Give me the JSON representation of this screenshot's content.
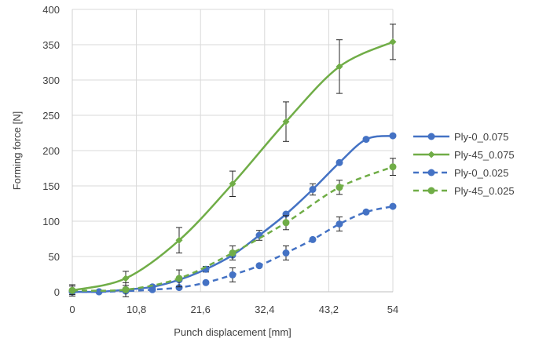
{
  "chart_data": {
    "type": "line",
    "xlabel": "Punch displacement [mm]",
    "ylabel": "Forming force [N]",
    "xlim": [
      0,
      54
    ],
    "ylim": [
      0,
      400
    ],
    "x_ticks": [
      "0",
      "10,8",
      "21,6",
      "32,4",
      "43,2",
      "54"
    ],
    "y_ticks": [
      "0",
      "50",
      "100",
      "150",
      "200",
      "250",
      "300",
      "350",
      "400"
    ],
    "grid": true,
    "legend_position": "right",
    "series": [
      {
        "name": "Ply-0_0.075",
        "color": "#4472C4",
        "dash": "solid",
        "marker": "circle",
        "points": [
          {
            "x": 0,
            "y": 0,
            "err": 0
          },
          {
            "x": 4.5,
            "y": 0,
            "err": 0
          },
          {
            "x": 9,
            "y": 3,
            "err": 0
          },
          {
            "x": 13.5,
            "y": 7,
            "err": 0
          },
          {
            "x": 18,
            "y": 17,
            "err": 0
          },
          {
            "x": 22.5,
            "y": 32,
            "err": 4
          },
          {
            "x": 27,
            "y": 52,
            "err": 0
          },
          {
            "x": 31.5,
            "y": 80,
            "err": 7
          },
          {
            "x": 36,
            "y": 110,
            "err": 0
          },
          {
            "x": 40.5,
            "y": 145,
            "err": 8
          },
          {
            "x": 45,
            "y": 183,
            "err": 0
          },
          {
            "x": 49.5,
            "y": 216,
            "err": 0
          },
          {
            "x": 54,
            "y": 221,
            "err": 0
          }
        ]
      },
      {
        "name": "Ply-45_0.075",
        "color": "#70AD47",
        "dash": "solid",
        "marker": "diamond",
        "points": [
          {
            "x": 0,
            "y": 2,
            "err": 8
          },
          {
            "x": 9,
            "y": 19,
            "err": 10
          },
          {
            "x": 18,
            "y": 73,
            "err": 18
          },
          {
            "x": 27,
            "y": 153,
            "err": 18
          },
          {
            "x": 36,
            "y": 241,
            "err": 28
          },
          {
            "x": 45,
            "y": 319,
            "err": 38
          },
          {
            "x": 54,
            "y": 354,
            "err": 25
          }
        ]
      },
      {
        "name": "Ply-0_0.025",
        "color": "#4472C4",
        "dash": "dashed",
        "marker": "circle",
        "points": [
          {
            "x": 0,
            "y": 0,
            "err": 0
          },
          {
            "x": 4.5,
            "y": 0,
            "err": 0
          },
          {
            "x": 9,
            "y": 1,
            "err": 0
          },
          {
            "x": 13.5,
            "y": 3,
            "err": 0
          },
          {
            "x": 18,
            "y": 6,
            "err": 0
          },
          {
            "x": 22.5,
            "y": 13,
            "err": 0
          },
          {
            "x": 27,
            "y": 24,
            "err": 10
          },
          {
            "x": 31.5,
            "y": 37,
            "err": 0
          },
          {
            "x": 36,
            "y": 55,
            "err": 10
          },
          {
            "x": 40.5,
            "y": 74,
            "err": 0
          },
          {
            "x": 45,
            "y": 96,
            "err": 10
          },
          {
            "x": 49.5,
            "y": 113,
            "err": 0
          },
          {
            "x": 54,
            "y": 121,
            "err": 0
          }
        ]
      },
      {
        "name": "Ply-45_0.025",
        "color": "#70AD47",
        "dash": "dashed",
        "marker": "circle",
        "points": [
          {
            "x": 0,
            "y": 2,
            "err": 6
          },
          {
            "x": 9,
            "y": 3,
            "err": 10
          },
          {
            "x": 18,
            "y": 19,
            "err": 12
          },
          {
            "x": 27,
            "y": 55,
            "err": 10
          },
          {
            "x": 36,
            "y": 98,
            "err": 10
          },
          {
            "x": 45,
            "y": 148,
            "err": 10
          },
          {
            "x": 54,
            "y": 177,
            "err": 12
          }
        ]
      }
    ]
  }
}
